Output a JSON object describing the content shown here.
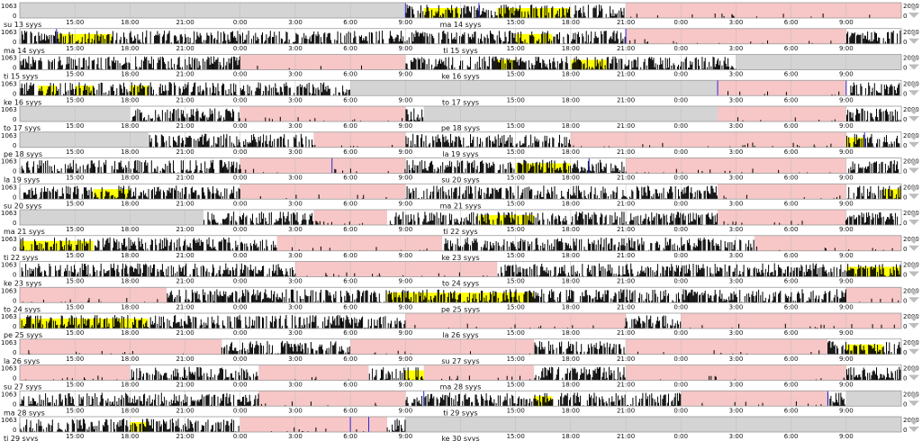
{
  "chart_data": {
    "type": "actogram",
    "title": "",
    "left_axis_max": "1063",
    "left_axis_min": "0",
    "right_axis_max": "2000",
    "right_axis_min": "0",
    "hour_ticks": [
      "15:00",
      "18:00",
      "21:00",
      "0:00",
      "3:00",
      "6:00",
      "9:00",
      "15:00",
      "18:00",
      "21:00",
      "0:00",
      "3:00",
      "6:00",
      "9:00"
    ],
    "hour_tick_values": [
      15,
      18,
      21,
      24,
      27,
      30,
      33,
      39,
      42,
      45,
      48,
      51,
      54,
      57
    ],
    "row_window_hours": [
      12,
      60
    ],
    "colors": {
      "activity": "#000000",
      "light": "#ffff00",
      "sleep_shading": "#f7c6c6",
      "no_data": "#d4d4d4",
      "marker": "#2a2ad6",
      "gridline": "#bcbcbc",
      "frame": "#9a9a9a"
    },
    "rows": [
      {
        "left_date": "su 13 syys",
        "right_date": "ma 14 syys",
        "no_data": [
          [
            12,
            33
          ]
        ],
        "rest": [
          [
            45,
            60
          ]
        ],
        "light": [
          [
            34,
            36
          ],
          [
            38,
            42
          ]
        ],
        "markers": [
          33,
          37
        ]
      },
      {
        "left_date": "ma 14 syys",
        "right_date": "ti 15 syys",
        "no_data": [],
        "rest": [
          [
            45,
            57
          ]
        ],
        "light": [
          [
            14,
            17
          ],
          [
            39,
            41
          ]
        ],
        "markers": [
          14,
          45
        ]
      },
      {
        "left_date": "ti 15 syys",
        "right_date": "ke 16 syys",
        "no_data": [
          [
            51,
            60
          ]
        ],
        "rest": [
          [
            24,
            33
          ]
        ],
        "light": [
          [
            38,
            39
          ],
          [
            42,
            44
          ]
        ],
        "markers": []
      },
      {
        "left_date": "ke 16 syys",
        "right_date": "to 17 syys",
        "no_data": [
          [
            30,
            50
          ]
        ],
        "rest": [
          [
            50,
            57
          ]
        ],
        "light": [
          [
            13,
            14
          ],
          [
            15,
            16
          ],
          [
            18,
            19
          ]
        ],
        "markers": [
          50,
          57
        ]
      },
      {
        "left_date": "to 17 syys",
        "right_date": "pe 18 syys",
        "no_data": [
          [
            12,
            18
          ],
          [
            34,
            50
          ]
        ],
        "rest": [
          [
            24,
            33
          ],
          [
            50,
            57
          ]
        ],
        "light": [],
        "markers": []
      },
      {
        "left_date": "pe 18 syys",
        "right_date": "la 19 syys",
        "no_data": [
          [
            12,
            19
          ]
        ],
        "rest": [
          [
            28,
            33
          ],
          [
            42,
            57
          ]
        ],
        "light": [
          [
            57,
            58
          ]
        ],
        "markers": [
          58
        ]
      },
      {
        "left_date": "la 19 syys",
        "right_date": "su 20 syys",
        "no_data": [],
        "rest": [
          [
            24,
            33
          ],
          [
            45,
            57
          ]
        ],
        "light": [
          [
            39,
            42
          ]
        ],
        "markers": [
          29,
          43
        ]
      },
      {
        "left_date": "su 20 syys",
        "right_date": "ma 21 syys",
        "no_data": [],
        "rest": [
          [
            24,
            33
          ],
          [
            50,
            57
          ]
        ],
        "light": [
          [
            16,
            18
          ],
          [
            59,
            60
          ]
        ],
        "markers": []
      },
      {
        "left_date": "ma 21 syys",
        "right_date": "ti 22 syys",
        "no_data": [
          [
            12,
            22
          ]
        ],
        "rest": [
          [
            28,
            32
          ],
          [
            50,
            57
          ]
        ],
        "light": [
          [
            37,
            40
          ]
        ],
        "markers": []
      },
      {
        "left_date": "ti 22 syys",
        "right_date": "ke 23 syys",
        "no_data": [],
        "rest": [
          [
            26,
            35
          ],
          [
            52,
            60
          ]
        ],
        "light": [
          [
            12,
            16
          ]
        ],
        "markers": []
      },
      {
        "left_date": "ke 23 syys",
        "right_date": "to 24 syys",
        "no_data": [],
        "rest": [
          [
            27,
            38
          ]
        ],
        "light": [
          [
            57,
            60
          ]
        ],
        "markers": []
      },
      {
        "left_date": "to 24 syys",
        "right_date": "pe 25 syys",
        "no_data": [],
        "rest": [
          [
            12,
            20
          ],
          [
            57,
            60
          ]
        ],
        "light": [
          [
            32,
            40
          ]
        ],
        "markers": []
      },
      {
        "left_date": "pe 25 syys",
        "right_date": "la 26 syys",
        "no_data": [],
        "rest": [
          [
            33,
            45
          ],
          [
            48,
            60
          ]
        ],
        "light": [
          [
            12,
            19
          ]
        ],
        "markers": []
      },
      {
        "left_date": "la 26 syys",
        "right_date": "su 27 syys",
        "no_data": [],
        "rest": [
          [
            12,
            23
          ],
          [
            30,
            40
          ],
          [
            45,
            56
          ]
        ],
        "light": [
          [
            57,
            59
          ]
        ],
        "markers": []
      },
      {
        "left_date": "su 27 syys",
        "right_date": "ma 28 syys",
        "no_data": [],
        "rest": [
          [
            12,
            18
          ],
          [
            25,
            31
          ],
          [
            34,
            40
          ],
          [
            45,
            57
          ]
        ],
        "light": [
          [
            33,
            34
          ]
        ],
        "markers": []
      },
      {
        "left_date": "ma 28 syys",
        "right_date": "ti 29 syys",
        "no_data": [
          [
            57,
            60
          ]
        ],
        "rest": [
          [
            25,
            33
          ],
          [
            48,
            56
          ]
        ],
        "light": [
          [
            40,
            41
          ]
        ],
        "markers": [
          34,
          56
        ]
      },
      {
        "left_date": "ti 29 syys",
        "right_date": "ke 30 syys",
        "no_data": [
          [
            33,
            60
          ]
        ],
        "rest": [
          [
            24,
            32
          ]
        ],
        "light": [
          [
            18,
            19
          ]
        ],
        "markers": [
          30,
          31
        ]
      }
    ]
  }
}
